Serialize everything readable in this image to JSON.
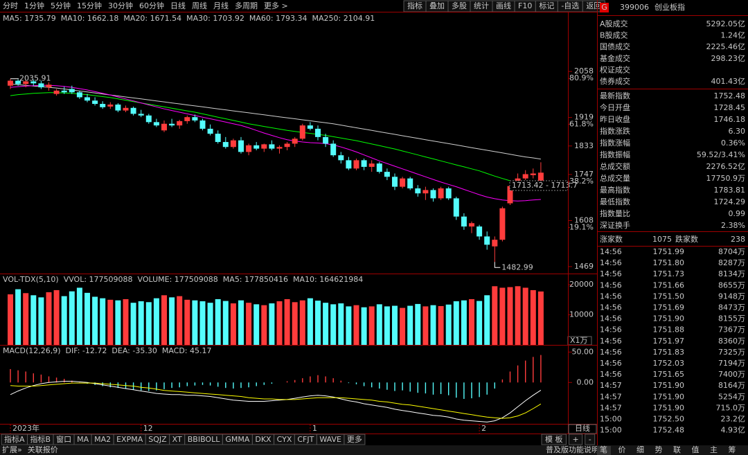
{
  "toolbar": {
    "tabs": [
      "分时",
      "1分钟",
      "5分钟",
      "15分钟",
      "30分钟",
      "60分钟",
      "日线",
      "周线",
      "月线",
      "多周期",
      "更多 >"
    ],
    "active": 6,
    "buttons": [
      "指标",
      "叠加",
      "多股",
      "统计",
      "画线",
      "F10",
      "标记",
      "-自选",
      "返回"
    ]
  },
  "panel": {
    "badge": "G",
    "code": "399006",
    "name": "创业板指",
    "market": [
      {
        "label": "A股成交",
        "value": "5292.05亿",
        "color": "#ffff00"
      },
      {
        "label": "B股成交",
        "value": "1.24亿",
        "color": "#ffff00"
      },
      {
        "label": "国债成交",
        "value": "2225.46亿",
        "color": "#ffff00"
      },
      {
        "label": "基金成交",
        "value": "298.23亿",
        "color": "#ffff00"
      },
      {
        "label": "权证成交"
      },
      {
        "label": "债券成交",
        "value": "401.43亿",
        "color": "#ffff00"
      }
    ],
    "stats": [
      {
        "label": "最新指数",
        "value": "1752.48",
        "color": "#ff3c3c"
      },
      {
        "label": "今日开盘",
        "value": "1728.45",
        "color": "#00e600"
      },
      {
        "label": "昨日收盘",
        "value": "1746.18",
        "color": "#ffffff"
      },
      {
        "label": "指数涨跌",
        "value": "6.30",
        "color": "#ff3c3c"
      },
      {
        "label": "指数涨幅",
        "value": "0.36%",
        "color": "#ff3c3c"
      },
      {
        "label": "指数振幅",
        "value": "59.52/3.41%",
        "color": "#ffffff"
      },
      {
        "label": "总成交额",
        "value": "2276.52亿",
        "color": "#ffff00"
      },
      {
        "label": "总成交量",
        "value": "17750.9万",
        "color": "#ffff00"
      },
      {
        "label": "最高指数",
        "value": "1783.81",
        "color": "#ff3c3c"
      },
      {
        "label": "最低指数",
        "value": "1724.29",
        "color": "#00e600"
      },
      {
        "label": "指数量比",
        "value": "0.99",
        "color": "#ffff00"
      },
      {
        "label": "深证换手",
        "value": "2.38%",
        "color": "#ffffff"
      }
    ],
    "breadth": {
      "up_label": "涨家数",
      "up": "1075",
      "down_label": "跌家数",
      "down": "238"
    },
    "ticks": [
      {
        "time": "14:56",
        "price": "1751.99",
        "volume": "8704万"
      },
      {
        "time": "14:56",
        "price": "1751.80",
        "volume": "8287万"
      },
      {
        "time": "14:56",
        "price": "1751.73",
        "volume": "8134万"
      },
      {
        "time": "14:56",
        "price": "1751.66",
        "volume": "8655万"
      },
      {
        "time": "14:56",
        "price": "1751.50",
        "volume": "9148万"
      },
      {
        "time": "14:56",
        "price": "1751.69",
        "volume": "8473万"
      },
      {
        "time": "14:56",
        "price": "1751.90",
        "volume": "8155万"
      },
      {
        "time": "14:56",
        "price": "1751.88",
        "volume": "7367万"
      },
      {
        "time": "14:56",
        "price": "1751.97",
        "volume": "8360万"
      },
      {
        "time": "14:56",
        "price": "1751.83",
        "volume": "7325万"
      },
      {
        "time": "14:56",
        "price": "1752.03",
        "volume": "7194万"
      },
      {
        "time": "14:56",
        "price": "1751.65",
        "volume": "7400万"
      },
      {
        "time": "14:57",
        "price": "1751.90",
        "volume": "8164万"
      },
      {
        "time": "14:57",
        "price": "1751.90",
        "volume": "5254万"
      },
      {
        "time": "14:57",
        "price": "1751.90",
        "volume": "715.0万"
      },
      {
        "time": "15:00",
        "price": "1752.50",
        "volume": "23.2亿"
      },
      {
        "time": "15:00",
        "price": "1752.48",
        "volume": "4.93亿"
      }
    ]
  },
  "bottom": {
    "tabs": [
      "指标A",
      "指标B",
      "窗口",
      "MA",
      "MA2",
      "EXPMA",
      "SQJZ",
      "XT",
      "BBIBOLL",
      "GMMA",
      "DKX",
      "CYX",
      "CFJT",
      "WAVE",
      "更多"
    ],
    "active": 4,
    "right": [
      "模 板",
      "+",
      "-"
    ],
    "period": "日线",
    "status_left": [
      "扩展»",
      "关联报价"
    ],
    "status_title": "普及版功能说明",
    "status_right": [
      "笔",
      "价",
      "细",
      "势",
      "联",
      "值",
      "主",
      "筹"
    ]
  },
  "chart_data": [
    {
      "type": "candlestick",
      "title": "创业板指(日线 前复权)",
      "legend": [
        {
          "text": "MA5: 1735.79",
          "color": "#ffffff"
        },
        {
          "text": "MA10: 1662.18",
          "color": "#ffff00"
        },
        {
          "text": "MA20: 1671.54",
          "color": "#ff00ff"
        },
        {
          "text": "MA30: 1703.92",
          "color": "#00ff00"
        },
        {
          "text": "MA60: 1793.34",
          "color": "#d0d0d0"
        },
        {
          "text": "MA250: 2104.91",
          "color": "#2a3cff"
        }
      ],
      "up_color": "#ff3c3c",
      "down_color": "#54fcfc",
      "open": [
        2015,
        2030,
        2020,
        2028,
        2022,
        2010,
        1990,
        2000,
        2005,
        1995,
        1980,
        1970,
        1960,
        1952,
        1958,
        1940,
        1948,
        1930,
        1925,
        1905,
        1880,
        1900,
        1895,
        1908,
        1920,
        1910,
        1885,
        1870,
        1845,
        1830,
        1850,
        1815,
        1835,
        1825,
        1838,
        1825,
        1830,
        1840,
        1855,
        1895,
        1885,
        1860,
        1840,
        1805,
        1790,
        1765,
        1790,
        1770,
        1780,
        1755,
        1740,
        1710,
        1735,
        1705,
        1690,
        1700,
        1675,
        1705,
        1675,
        1620,
        1590,
        1590,
        1560,
        1530,
        1550,
        1660,
        1712,
        1735,
        1745,
        1728.45
      ],
      "high": [
        2035.91,
        2034,
        2032,
        2033,
        2030,
        2025,
        2005,
        2012,
        2015,
        2000,
        1990,
        1980,
        1968,
        1965,
        1962,
        1955,
        1952,
        1942,
        1930,
        1915,
        1910,
        1915,
        1912,
        1925,
        1928,
        1915,
        1898,
        1880,
        1860,
        1855,
        1860,
        1840,
        1845,
        1840,
        1850,
        1835,
        1845,
        1860,
        1900,
        1905,
        1895,
        1870,
        1850,
        1815,
        1800,
        1795,
        1795,
        1790,
        1785,
        1765,
        1750,
        1740,
        1740,
        1715,
        1710,
        1705,
        1710,
        1710,
        1680,
        1630,
        1605,
        1595,
        1575,
        1560,
        1650,
        1720,
        1750,
        1760,
        1765,
        1783.81
      ],
      "low": [
        2005,
        2015,
        2010,
        2015,
        2005,
        2000,
        1985,
        1990,
        1990,
        1975,
        1965,
        1955,
        1945,
        1945,
        1935,
        1935,
        1925,
        1920,
        1900,
        1890,
        1875,
        1890,
        1885,
        1900,
        1905,
        1880,
        1865,
        1840,
        1825,
        1825,
        1810,
        1805,
        1820,
        1815,
        1820,
        1810,
        1820,
        1830,
        1850,
        1880,
        1850,
        1830,
        1800,
        1780,
        1760,
        1760,
        1760,
        1755,
        1750,
        1730,
        1700,
        1705,
        1700,
        1680,
        1670,
        1665,
        1670,
        1670,
        1610,
        1580,
        1570,
        1550,
        1520,
        1482.99,
        1545,
        1655,
        1700,
        1730,
        1735,
        1724.29
      ],
      "close": [
        2030,
        2020,
        2028,
        2022,
        2010,
        2018,
        2000,
        1995,
        1995,
        1980,
        1970,
        1960,
        1950,
        1958,
        1940,
        1948,
        1930,
        1925,
        1905,
        1895,
        1900,
        1895,
        1908,
        1920,
        1910,
        1885,
        1870,
        1845,
        1830,
        1850,
        1815,
        1835,
        1825,
        1838,
        1825,
        1830,
        1840,
        1855,
        1895,
        1885,
        1860,
        1840,
        1805,
        1790,
        1765,
        1790,
        1770,
        1780,
        1755,
        1740,
        1710,
        1735,
        1705,
        1690,
        1700,
        1675,
        1705,
        1675,
        1620,
        1590,
        1600,
        1560,
        1535,
        1550,
        1645,
        1712,
        1735,
        1748,
        1750,
        1752.48
      ],
      "lines": [
        {
          "color": "#d0d0d0",
          "values": [
            2020,
            2018,
            2016,
            2014,
            2012,
            2010,
            2008,
            2005,
            2002,
            1999,
            1996,
            1993,
            1990,
            1987,
            1984,
            1981,
            1978,
            1975,
            1972,
            1969,
            1966,
            1963,
            1960,
            1957,
            1954,
            1951,
            1948,
            1945,
            1942,
            1939,
            1936,
            1933,
            1930,
            1927,
            1924,
            1921,
            1918,
            1915,
            1912,
            1909,
            1906,
            1903,
            1900,
            1896,
            1892,
            1888,
            1884,
            1880,
            1876,
            1872,
            1868,
            1864,
            1860,
            1856,
            1852,
            1848,
            1844,
            1840,
            1836,
            1832,
            1828,
            1824,
            1820,
            1816,
            1812,
            1808,
            1804,
            1800,
            1797,
            1793.34
          ]
        },
        {
          "color": "#00ff00",
          "values": [
            1985,
            1988,
            1990,
            1992,
            1993,
            1994,
            1994,
            1993,
            1992,
            1990,
            1988,
            1985,
            1982,
            1979,
            1975,
            1971,
            1967,
            1963,
            1959,
            1955,
            1951,
            1947,
            1943,
            1939,
            1935,
            1930,
            1925,
            1920,
            1915,
            1910,
            1905,
            1900,
            1896,
            1892,
            1888,
            1884,
            1880,
            1877,
            1874,
            1871,
            1868,
            1865,
            1861,
            1857,
            1853,
            1849,
            1844,
            1839,
            1834,
            1829,
            1824,
            1818,
            1812,
            1806,
            1800,
            1794,
            1788,
            1782,
            1776,
            1770,
            1764,
            1758,
            1750,
            1742,
            1735,
            1728,
            1721,
            1715,
            1709,
            1703.92
          ]
        },
        {
          "color": "#ff00ff",
          "values": [
            2010,
            2012,
            2014,
            2015,
            2016,
            2016,
            2015,
            2013,
            2010,
            2006,
            2002,
            1997,
            1992,
            1987,
            1981,
            1975,
            1969,
            1963,
            1957,
            1951,
            1945,
            1940,
            1935,
            1930,
            1925,
            1920,
            1915,
            1910,
            1905,
            1900,
            1895,
            1888,
            1880,
            1872,
            1865,
            1858,
            1852,
            1848,
            1845,
            1843,
            1842,
            1840,
            1836,
            1830,
            1823,
            1815,
            1806,
            1797,
            1788,
            1780,
            1772,
            1764,
            1756,
            1748,
            1740,
            1732,
            1724,
            1717,
            1710,
            1702,
            1694,
            1686,
            1679,
            1674,
            1670,
            1668,
            1667,
            1668,
            1670,
            1671.54
          ]
        }
      ],
      "ylim": [
        1448,
        2238
      ],
      "yticks": [
        2058,
        1919,
        1833,
        1747,
        1608,
        1469
      ],
      "level_labels": [
        {
          "value": 2058,
          "label": "80.9%"
        },
        {
          "value": 1919,
          "label": "61.8%"
        },
        {
          "value": 1747,
          "label": "38.2%"
        },
        {
          "value": 1608,
          "label": "19.1%"
        }
      ],
      "high_label": "2035.91",
      "low_label": "1482.99",
      "cursor": {
        "text": "1713.42 - 1713.7",
        "value": 1713.42
      }
    },
    {
      "type": "bar",
      "legend": [
        {
          "text": "VOL-TDX(5,10)",
          "color": "#c8c8c8"
        },
        {
          "text": "VVOL: 177509088",
          "color": "#c8c8c8"
        },
        {
          "text": "VOLUME: 177509088",
          "color": "#ffff00"
        },
        {
          "text": "MA5: 177850416",
          "color": "#ffffff"
        },
        {
          "text": "MA10: 164621984",
          "color": "#ff00ff"
        }
      ],
      "values": [
        16800,
        18500,
        17200,
        16500,
        15800,
        17500,
        18200,
        16200,
        17800,
        19000,
        17300,
        16000,
        15500,
        15000,
        14800,
        15200,
        14000,
        14500,
        14200,
        15500,
        16500,
        15800,
        16200,
        15000,
        14800,
        14500,
        14000,
        15200,
        14600,
        13800,
        14800,
        14000,
        13500,
        13200,
        13800,
        14500,
        15200,
        14200,
        14800,
        15500,
        14700,
        14000,
        13500,
        13800,
        12800,
        13200,
        12500,
        12800,
        13500,
        12800,
        13000,
        12300,
        13000,
        13600,
        12800,
        13200,
        12900,
        13400,
        14500,
        14800,
        15200,
        14600,
        16500,
        19500,
        19000,
        19200,
        19500,
        19000,
        18200,
        17750.9
      ],
      "ylim": [
        0,
        23250
      ],
      "yticks": [
        20000,
        10000
      ],
      "unit": "X1万"
    },
    {
      "type": "macd",
      "legend": [
        {
          "text": "MACD(12,26,9)",
          "color": "#c8c8c8"
        },
        {
          "text": "DIF: -12.72",
          "color": "#ffffff"
        },
        {
          "text": "DEA: -35.30",
          "color": "#ffff00"
        },
        {
          "text": "MACD: 45.17",
          "color": "#ff00ff"
        }
      ],
      "up_color": "#ff3c3c",
      "down_color": "#54fcfc",
      "values": [
        22,
        20,
        18,
        15,
        13,
        10,
        8,
        6,
        3,
        1,
        -2,
        -4,
        -6,
        -8,
        -9,
        -10,
        -12,
        -13,
        -14,
        -13,
        -11,
        -9,
        -8,
        -6,
        -5,
        -4,
        -5,
        -7,
        -9,
        -10,
        -9,
        -8,
        -6,
        -4,
        -2,
        0,
        2,
        4,
        7,
        10,
        12,
        10,
        7,
        3,
        -1,
        -3,
        -6,
        -8,
        -10,
        -12,
        -14,
        -13,
        -15,
        -17,
        -18,
        -20,
        -19,
        -21,
        -25,
        -27,
        -26,
        -24,
        -20,
        -10,
        5,
        18,
        28,
        36,
        42,
        45.17
      ],
      "lines": [
        {
          "color": "#ffffff",
          "values": [
            -20,
            -14,
            -9,
            -5,
            -2,
            0,
            1,
            2,
            2,
            1,
            0,
            -2,
            -4,
            -6,
            -8,
            -10,
            -12,
            -14,
            -16,
            -18,
            -19,
            -20,
            -20,
            -21,
            -21,
            -22,
            -23,
            -25,
            -27,
            -29,
            -30,
            -31,
            -31,
            -31,
            -30,
            -29,
            -28,
            -26,
            -24,
            -22,
            -21,
            -22,
            -24,
            -27,
            -30,
            -32,
            -35,
            -37,
            -39,
            -41,
            -44,
            -46,
            -48,
            -50,
            -52,
            -54,
            -55,
            -57,
            -60,
            -62,
            -63,
            -64,
            -65,
            -63,
            -58,
            -50,
            -40,
            -30,
            -21,
            -12.72
          ]
        },
        {
          "color": "#ffff00",
          "values": [
            -5,
            -6,
            -6,
            -6,
            -5,
            -4,
            -3,
            -2,
            -1,
            -1,
            -1,
            -1,
            -2,
            -3,
            -4,
            -5,
            -6,
            -8,
            -9,
            -11,
            -13,
            -14,
            -15,
            -16,
            -17,
            -18,
            -19,
            -20,
            -21,
            -22,
            -23,
            -25,
            -26,
            -27,
            -27,
            -28,
            -28,
            -28,
            -27,
            -26,
            -25,
            -25,
            -25,
            -25,
            -26,
            -27,
            -28,
            -29,
            -31,
            -32,
            -34,
            -36,
            -37,
            -39,
            -41,
            -43,
            -45,
            -47,
            -49,
            -51,
            -53,
            -55,
            -57,
            -58,
            -59,
            -58,
            -55,
            -50,
            -43,
            -35.3
          ]
        }
      ],
      "ylim": [
        -68,
        59.5
      ],
      "yticks": [
        {
          "value": 50,
          "label": "50.00"
        },
        {
          "value": 0,
          "label": "0.00"
        }
      ],
      "xticks": [
        {
          "value": 0,
          "label": "2023年"
        },
        {
          "value": 17,
          "label": "12"
        },
        {
          "value": 39,
          "label": "1"
        },
        {
          "value": 61,
          "label": "2"
        }
      ]
    }
  ]
}
